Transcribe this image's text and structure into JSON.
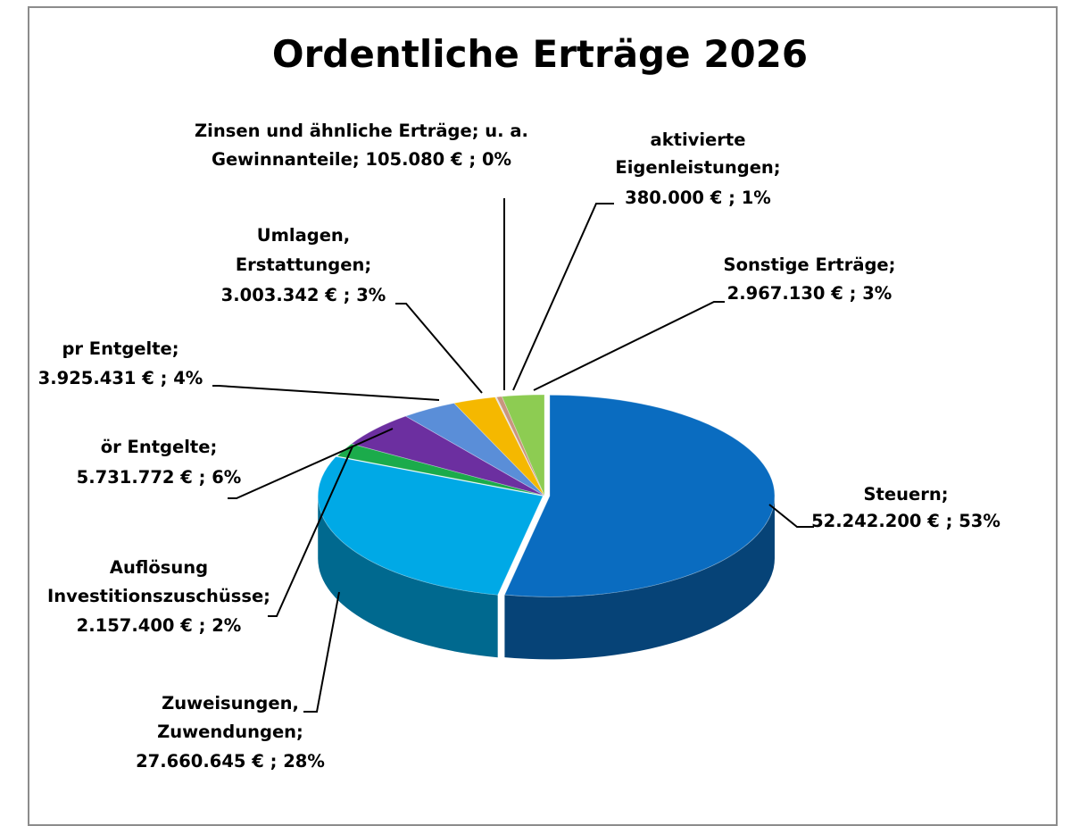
{
  "chart_data": {
    "type": "pie",
    "title": "Ordentliche Erträge 2026",
    "unit": "€",
    "slices": [
      {
        "label": "Steuern;",
        "value_text": "52.242.200 € ; 53%",
        "value": 52242200,
        "percent": 53,
        "color": "#0a6cc0"
      },
      {
        "label": "Zuweisungen, Zuwendungen;",
        "value_text": "27.660.645 € ; 28%",
        "value": 27660645,
        "percent": 28,
        "color": "#00a9e6"
      },
      {
        "label": "Auflösung Investitionszuschüsse;",
        "value_text": "2.157.400 € ; 2%",
        "value": 2157400,
        "percent": 2,
        "color": "#1bab4b"
      },
      {
        "label": "ör Entgelte;",
        "value_text": "5.731.772 € ; 6%",
        "value": 5731772,
        "percent": 6,
        "color": "#6c2fa0"
      },
      {
        "label": "pr Entgelte;",
        "value_text": "3.925.431 € ; 4%",
        "value": 3925431,
        "percent": 4,
        "color": "#5a8ed8"
      },
      {
        "label": "Umlagen, Erstattungen;",
        "value_text": "3.003.342 € ; 3%",
        "value": 3003342,
        "percent": 3,
        "color": "#f5b800"
      },
      {
        "label": "Zinsen und ähnliche Erträge; u. a. Gewinnanteile;",
        "value_text": "105.080 € ; 0%",
        "value": 105080,
        "percent": 0,
        "color": "#e0e0e0"
      },
      {
        "label": "aktivierte Eigenleistungen;",
        "value_text": "380.000 € ; 1%",
        "value": 380000,
        "percent": 1,
        "color": "#c9957f"
      },
      {
        "label": "Sonstige Erträge;",
        "value_text": "2.967.130 € ; 3%",
        "value": 2967130,
        "percent": 3,
        "color": "#8dcc52"
      }
    ]
  }
}
